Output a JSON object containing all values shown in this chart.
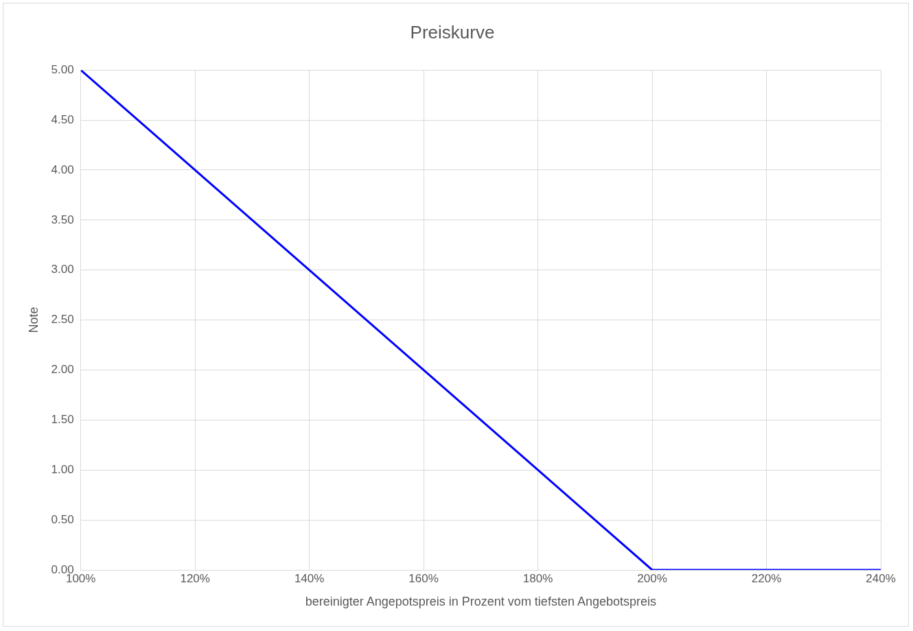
{
  "chart_data": {
    "type": "line",
    "title": "Preiskurve",
    "xlabel": "bereinigter Angepotspreis in Prozent vom tiefsten Angebotspreis",
    "ylabel": "Note",
    "x": [
      100,
      200,
      240
    ],
    "series": [
      {
        "color": "#0000ff",
        "values": [
          5,
          0,
          0
        ]
      }
    ],
    "xlim": [
      100,
      240
    ],
    "xticks": [
      {
        "value": 100,
        "label": "100%"
      },
      {
        "value": 120,
        "label": "120%"
      },
      {
        "value": 140,
        "label": "140%"
      },
      {
        "value": 160,
        "label": "160%"
      },
      {
        "value": 180,
        "label": "180%"
      },
      {
        "value": 200,
        "label": "200%"
      },
      {
        "value": 220,
        "label": "220%"
      },
      {
        "value": 240,
        "label": "240%"
      }
    ],
    "ylim": [
      0,
      5
    ],
    "yticks": [
      {
        "value": 0,
        "label": "0.00"
      },
      {
        "value": 0.5,
        "label": "0.50"
      },
      {
        "value": 1,
        "label": "1.00"
      },
      {
        "value": 1.5,
        "label": "1.50"
      },
      {
        "value": 2,
        "label": "2.00"
      },
      {
        "value": 2.5,
        "label": "2.50"
      },
      {
        "value": 3,
        "label": "3.00"
      },
      {
        "value": 3.5,
        "label": "3.50"
      },
      {
        "value": 4,
        "label": "4.00"
      },
      {
        "value": 4.5,
        "label": "4.50"
      },
      {
        "value": 5,
        "label": "5.00"
      }
    ],
    "grid": true,
    "legend": false,
    "marker": "none",
    "line_style": "solid"
  }
}
